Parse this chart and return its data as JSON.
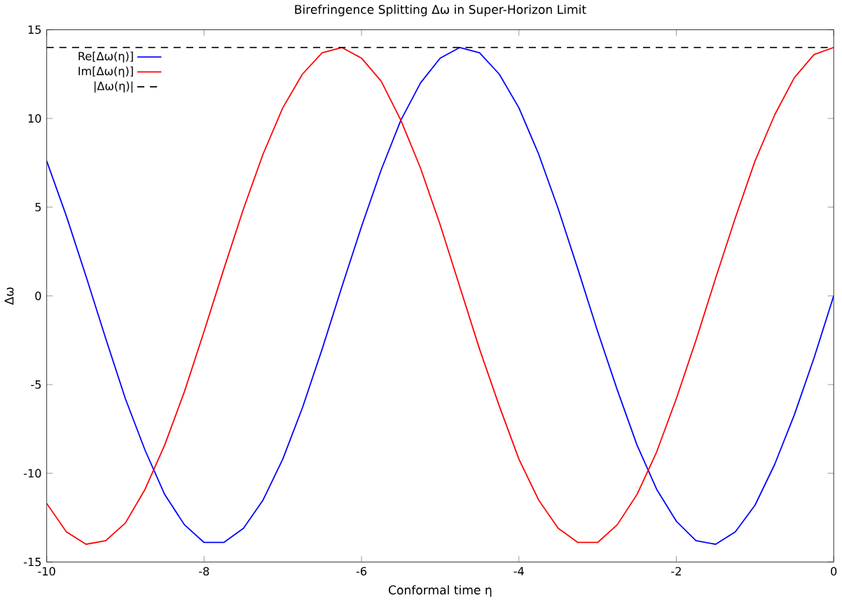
{
  "chart_data": {
    "type": "line",
    "title": "Birefringence Splitting Δω in Super-Horizon Limit",
    "xlabel": "Conformal time η",
    "ylabel": "Δω",
    "x": [
      -10,
      -9.75,
      -9.5,
      -9.25,
      -9,
      -8.75,
      -8.5,
      -8.25,
      -8,
      -7.75,
      -7.5,
      -7.25,
      -7,
      -6.75,
      -6.5,
      -6.25,
      -6,
      -5.75,
      -5.5,
      -5.25,
      -5,
      -4.75,
      -4.5,
      -4.25,
      -4,
      -3.75,
      -3.5,
      -3.25,
      -3,
      -2.75,
      -2.5,
      -2.25,
      -2,
      -1.75,
      -1.5,
      -1.25,
      -1,
      -0.75,
      -0.5,
      -0.25,
      0
    ],
    "series": [
      {
        "name": "Re[Δω(η)]",
        "color": "#0000ff",
        "line_style": "solid",
        "values": [
          7.6,
          4.5,
          1.1,
          -2.4,
          -5.8,
          -8.7,
          -11.2,
          -12.9,
          -13.9,
          -13.9,
          -13.1,
          -11.5,
          -9.2,
          -6.3,
          -3.0,
          0.5,
          3.9,
          7.1,
          9.9,
          12.0,
          13.4,
          14.0,
          13.7,
          12.5,
          10.6,
          8.0,
          4.9,
          1.5,
          -2.0,
          -5.3,
          -8.4,
          -10.9,
          -12.7,
          -13.8,
          -14.0,
          -13.3,
          -11.8,
          -9.5,
          -6.7,
          -3.5,
          0.0
        ]
      },
      {
        "name": "Im[Δω(η)]",
        "color": "#ff0000",
        "line_style": "solid",
        "values": [
          -11.7,
          -13.3,
          -14.0,
          -13.8,
          -12.8,
          -10.9,
          -8.4,
          -5.4,
          -2.0,
          1.5,
          4.9,
          8.0,
          10.6,
          12.5,
          13.7,
          14.0,
          13.4,
          12.1,
          9.9,
          7.2,
          4.0,
          0.5,
          -3.0,
          -6.2,
          -9.2,
          -11.5,
          -13.1,
          -13.9,
          -13.9,
          -12.9,
          -11.2,
          -8.8,
          -5.8,
          -2.5,
          1.0,
          4.4,
          7.6,
          10.2,
          12.3,
          13.6,
          14.0
        ]
      },
      {
        "name": "|Δω(η)|",
        "color": "#000000",
        "line_style": "dashed",
        "x": [
          -10,
          0
        ],
        "values": [
          14,
          14
        ]
      }
    ],
    "xlim": [
      -10,
      0
    ],
    "ylim": [
      -15,
      15
    ],
    "xticks": [
      -10,
      -8,
      -6,
      -4,
      -2,
      0
    ],
    "yticks": [
      -15,
      -10,
      -5,
      0,
      5,
      10,
      15
    ],
    "grid": false,
    "legend": "top left",
    "marker": "none"
  }
}
